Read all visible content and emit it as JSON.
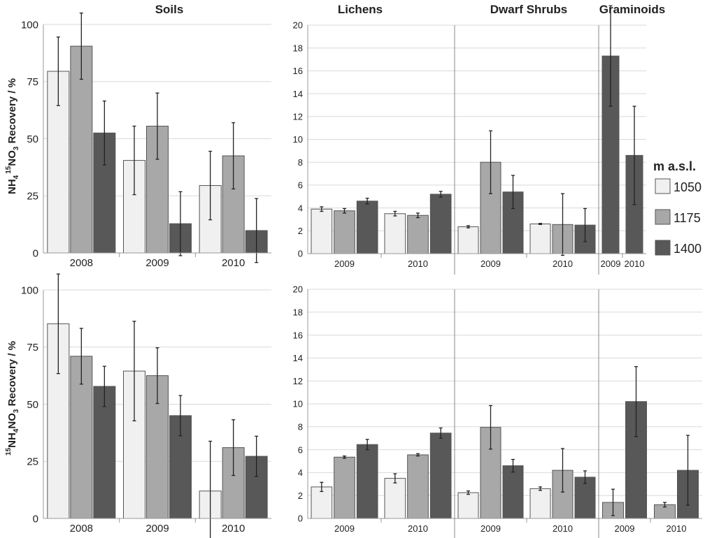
{
  "colors": {
    "c1050": "#f0f0f0",
    "c1175": "#a8a8a8",
    "c1400": "#585858",
    "grid": "#d9d9d9",
    "axis": "#9a9a9a",
    "text": "#222222"
  },
  "headers": {
    "soils": "Soils",
    "lichens": "Lichens",
    "dwarf_shrubs": "Dwarf Shrubs",
    "graminoids": "Graminoids"
  },
  "ylabels": {
    "top": {
      "pre": "NH",
      "sub": "4",
      "sup": "15",
      "post": "NO",
      "sub2": "3",
      "tail": " Recovery / %"
    },
    "bottom": {
      "sup": "15",
      "pre": "NH",
      "sub": "4",
      "post": "NO",
      "sub2": "3",
      "tail": " Recovery / %"
    }
  },
  "legend": {
    "title": "m a.s.l.",
    "items": [
      "1050",
      "1175",
      "1400"
    ]
  },
  "chart_data": [
    {
      "id": "top-soils",
      "type": "bar",
      "ylim": [
        0,
        100
      ],
      "yticks": [
        "0",
        "25",
        "50",
        "75",
        "100"
      ],
      "categories": [
        "2008",
        "2009",
        "2010"
      ],
      "series": [
        {
          "name": "1050",
          "values": [
            79.5,
            40.5,
            29.5
          ],
          "err": [
            15,
            15,
            15
          ]
        },
        {
          "name": "1175",
          "values": [
            90.5,
            55.5,
            42.5
          ],
          "err": [
            14.5,
            14.5,
            14.5
          ]
        },
        {
          "name": "1400",
          "values": [
            52.5,
            12.8,
            9.8
          ],
          "err": [
            14,
            14,
            14
          ]
        }
      ]
    },
    {
      "id": "top-plants",
      "type": "bar",
      "ylim": [
        0,
        20
      ],
      "yticks": [
        "0",
        "2",
        "4",
        "6",
        "8",
        "10",
        "12",
        "14",
        "16",
        "18",
        "20"
      ],
      "groups": [
        {
          "label": "Lichens",
          "categories": [
            {
              "label": "2009",
              "values": [
                3.9,
                3.75,
                4.6
              ],
              "err": [
                0.2,
                0.2,
                0.25
              ]
            },
            {
              "label": "2010",
              "values": [
                3.5,
                3.35,
                5.2
              ],
              "err": [
                0.2,
                0.2,
                0.25
              ]
            }
          ]
        },
        {
          "label": "Dwarf Shrubs",
          "categories": [
            {
              "label": "2009",
              "values": [
                2.35,
                8.0,
                5.4
              ],
              "err": [
                0.1,
                2.75,
                1.45
              ]
            },
            {
              "label": "2010",
              "values": [
                2.6,
                2.55,
                2.5
              ],
              "err": [
                0.05,
                2.7,
                1.45
              ]
            }
          ]
        },
        {
          "label": "Graminoids",
          "categories": [
            {
              "label": "2009",
              "values": [
                null,
                null,
                17.3
              ],
              "err": [
                null,
                null,
                4.4
              ]
            },
            {
              "label": "2010",
              "values": [
                null,
                null,
                8.6
              ],
              "err": [
                null,
                null,
                4.3
              ]
            }
          ]
        }
      ]
    },
    {
      "id": "bottom-soils",
      "type": "bar",
      "ylim": [
        0,
        100
      ],
      "yticks": [
        "0",
        "25",
        "50",
        "75",
        "100"
      ],
      "categories": [
        "2008",
        "2009",
        "2010"
      ],
      "series": [
        {
          "name": "1050",
          "values": [
            85.2,
            64.5,
            12
          ],
          "err": [
            21.8,
            21.8,
            21.8
          ]
        },
        {
          "name": "1175",
          "values": [
            71,
            62.5,
            31
          ],
          "err": [
            12.2,
            12.2,
            12.2
          ]
        },
        {
          "name": "1400",
          "values": [
            57.8,
            45,
            27.2
          ],
          "err": [
            8.8,
            8.8,
            8.8
          ]
        }
      ]
    },
    {
      "id": "bottom-plants",
      "type": "bar",
      "ylim": [
        0,
        20
      ],
      "yticks": [
        "0",
        "2",
        "4",
        "6",
        "8",
        "10",
        "12",
        "14",
        "16",
        "18",
        "20"
      ],
      "groups": [
        {
          "label": "Lichens",
          "categories": [
            {
              "label": "2009",
              "values": [
                2.75,
                5.35,
                6.45
              ],
              "err": [
                0.4,
                0.1,
                0.45
              ]
            },
            {
              "label": "2010",
              "values": [
                3.5,
                5.55,
                7.45
              ],
              "err": [
                0.4,
                0.1,
                0.45
              ]
            }
          ]
        },
        {
          "label": "Dwarf Shrubs",
          "categories": [
            {
              "label": "2009",
              "values": [
                2.25,
                7.95,
                4.6
              ],
              "err": [
                0.15,
                1.9,
                0.55
              ]
            },
            {
              "label": "2010",
              "values": [
                2.6,
                4.2,
                3.6
              ],
              "err": [
                0.15,
                1.9,
                0.55
              ]
            }
          ]
        },
        {
          "label": "Graminoids",
          "categories": [
            {
              "label": "2009",
              "values": [
                null,
                1.4,
                10.2
              ],
              "err": [
                null,
                1.15,
                3.05
              ]
            },
            {
              "label": "2010",
              "values": [
                null,
                1.2,
                4.2
              ],
              "err": [
                null,
                0.2,
                3.05
              ]
            }
          ]
        }
      ]
    }
  ]
}
